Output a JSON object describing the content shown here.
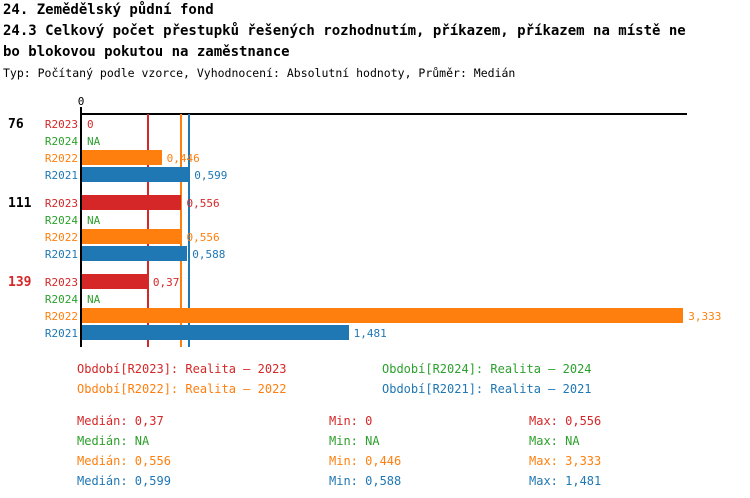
{
  "header": {
    "title_line1": "24. Zemědělský půdní fond",
    "title_line2": "24.3 Celkový počet přestupků řešených rozhodnutím, příkazem, příkazem na místě ne",
    "title_line3": "bo blokovou pokutou na zaměstnance",
    "subtitle": "Typ: Počítaný podle vzorce, Vyhodnocení: Absolutní hodnoty, Průměr: Medián"
  },
  "chart_data": {
    "type": "bar",
    "orientation": "horizontal",
    "value_axis": {
      "zero_label": "0",
      "min": 0,
      "max": 3.35,
      "grid": false
    },
    "series": [
      {
        "id": "R2023",
        "name": "Realita – 2023",
        "color": "#d62728"
      },
      {
        "id": "R2024",
        "name": "Realita – 2024",
        "color": "#2ca02c"
      },
      {
        "id": "R2022",
        "name": "Realita – 2022",
        "color": "#ff7f0e"
      },
      {
        "id": "R2021",
        "name": "Realita – 2021",
        "color": "#1f77b4"
      }
    ],
    "groups": [
      {
        "label": "76",
        "label_color": "#000000",
        "values": [
          {
            "series": "R2023",
            "value": 0,
            "display": "0"
          },
          {
            "series": "R2024",
            "value": null,
            "display": "NA"
          },
          {
            "series": "R2022",
            "value": 0.446,
            "display": "0,446"
          },
          {
            "series": "R2021",
            "value": 0.599,
            "display": "0,599"
          }
        ]
      },
      {
        "label": "111",
        "label_color": "#000000",
        "values": [
          {
            "series": "R2023",
            "value": 0.556,
            "display": "0,556"
          },
          {
            "series": "R2024",
            "value": null,
            "display": "NA"
          },
          {
            "series": "R2022",
            "value": 0.556,
            "display": "0,556"
          },
          {
            "series": "R2021",
            "value": 0.588,
            "display": "0,588"
          }
        ]
      },
      {
        "label": "139",
        "label_color": "#d62728",
        "values": [
          {
            "series": "R2023",
            "value": 0.37,
            "display": "0,37"
          },
          {
            "series": "R2024",
            "value": null,
            "display": "NA"
          },
          {
            "series": "R2022",
            "value": 3.333,
            "display": "3,333"
          },
          {
            "series": "R2021",
            "value": 1.481,
            "display": "1,481"
          }
        ]
      }
    ],
    "median_lines": [
      {
        "series": "R2023",
        "value": 0.37,
        "color": "#d62728"
      },
      {
        "series": "R2022",
        "value": 0.556,
        "color": "#ff7f0e"
      },
      {
        "series": "R2021",
        "value": 0.599,
        "color": "#1f77b4"
      }
    ],
    "legend": [
      {
        "text": "Období[R2023]: Realita – 2023",
        "color": "#d62728"
      },
      {
        "text": "Období[R2024]: Realita – 2024",
        "color": "#2ca02c"
      },
      {
        "text": "Období[R2022]: Realita – 2022",
        "color": "#ff7f0e"
      },
      {
        "text": "Období[R2021]: Realita – 2021",
        "color": "#1f77b4"
      }
    ],
    "stats": {
      "median_label": "Medián",
      "min_label": "Min",
      "max_label": "Max",
      "rows": [
        {
          "color": "#d62728",
          "median": "0,37",
          "min": "0",
          "max": "0,556"
        },
        {
          "color": "#2ca02c",
          "median": "NA",
          "min": "NA",
          "max": "NA"
        },
        {
          "color": "#ff7f0e",
          "median": "0,556",
          "min": "0,446",
          "max": "3,333"
        },
        {
          "color": "#1f77b4",
          "median": "0,599",
          "min": "0,588",
          "max": "1,481"
        }
      ]
    }
  }
}
